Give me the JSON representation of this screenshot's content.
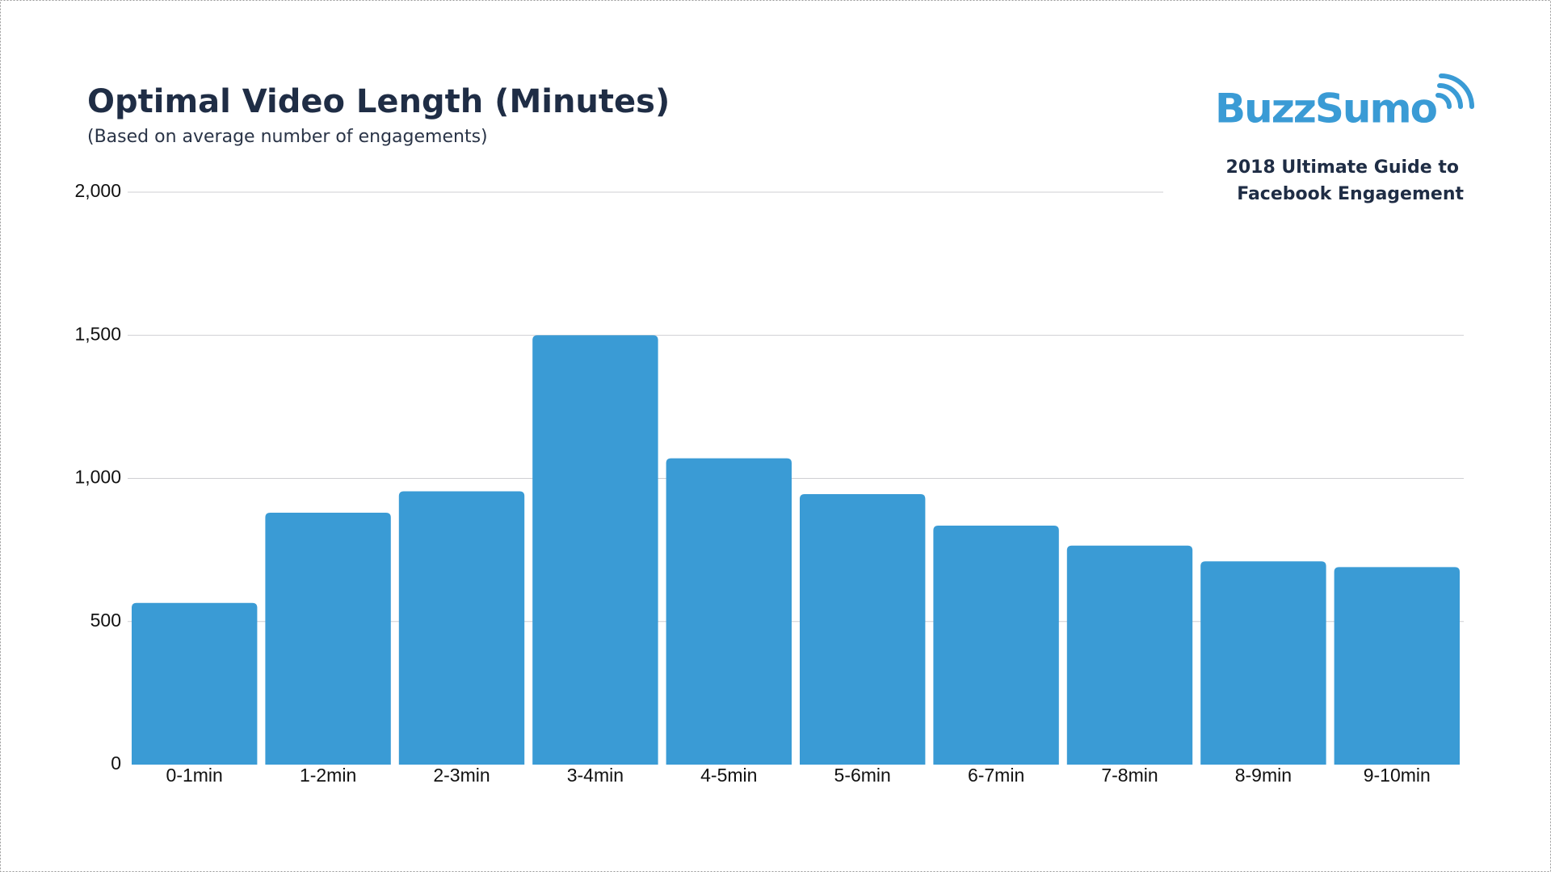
{
  "chart_data": {
    "type": "bar",
    "title": "Optimal Video Length (Minutes)",
    "subtitle": "(Based on average number of engagements)",
    "logo": "BuzzSumo",
    "note": [
      "2018 Ultimate Guide to",
      "Facebook Engagement"
    ],
    "categories": [
      "0-1min",
      "1-2min",
      "2-3min",
      "3-4min",
      "4-5min",
      "5-6min",
      "6-7min",
      "7-8min",
      "8-9min",
      "9-10min"
    ],
    "values": [
      565,
      880,
      955,
      1500,
      1070,
      945,
      835,
      765,
      710,
      690
    ],
    "color": "#3a9bd5",
    "ylim": [
      0,
      2000
    ],
    "yticks": [
      0,
      500,
      {
        "value": 1000,
        "label": "1,000"
      },
      {
        "value": 1500,
        "label": "1,500"
      },
      {
        "value": 2000,
        "label": "2,000"
      }
    ],
    "grid": true
  }
}
